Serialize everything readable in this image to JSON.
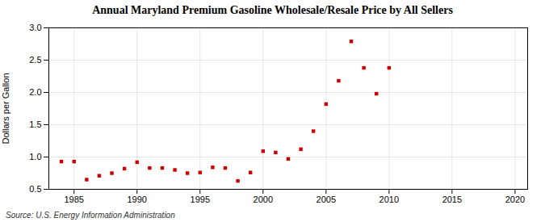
{
  "chart_data": {
    "type": "scatter",
    "title": "Annual Maryland Premium Gasoline Wholesale/Resale Price by All Sellers",
    "ylabel": "Dollars per Gallon",
    "source": "Source: U.S. Energy Information Administration",
    "x": [
      1984,
      1985,
      1986,
      1987,
      1988,
      1989,
      1990,
      1991,
      1992,
      1993,
      1994,
      1995,
      1996,
      1997,
      1998,
      1999,
      2000,
      2001,
      2002,
      2003,
      2004,
      2005,
      2006,
      2007,
      2008,
      2009,
      2010
    ],
    "values": [
      0.93,
      0.93,
      0.65,
      0.71,
      0.75,
      0.82,
      0.92,
      0.83,
      0.83,
      0.8,
      0.75,
      0.76,
      0.84,
      0.83,
      0.63,
      0.76,
      1.09,
      1.07,
      0.97,
      1.12,
      1.4,
      1.82,
      2.18,
      2.79,
      2.38,
      1.98,
      2.38
    ],
    "color": "#cc0000",
    "marker": "square",
    "xlim": [
      1983,
      2021
    ],
    "ylim": [
      0.5,
      3.0
    ],
    "xticks": [
      1985,
      1990,
      1995,
      2000,
      2005,
      2010,
      2015,
      2020
    ],
    "yticks": [
      0.5,
      {
        "value": 1.0,
        "label": "1.0"
      },
      1.5,
      {
        "value": 2.0,
        "label": "2.0"
      },
      2.5,
      {
        "value": 3.0,
        "label": "3.0"
      }
    ],
    "grid": true
  }
}
